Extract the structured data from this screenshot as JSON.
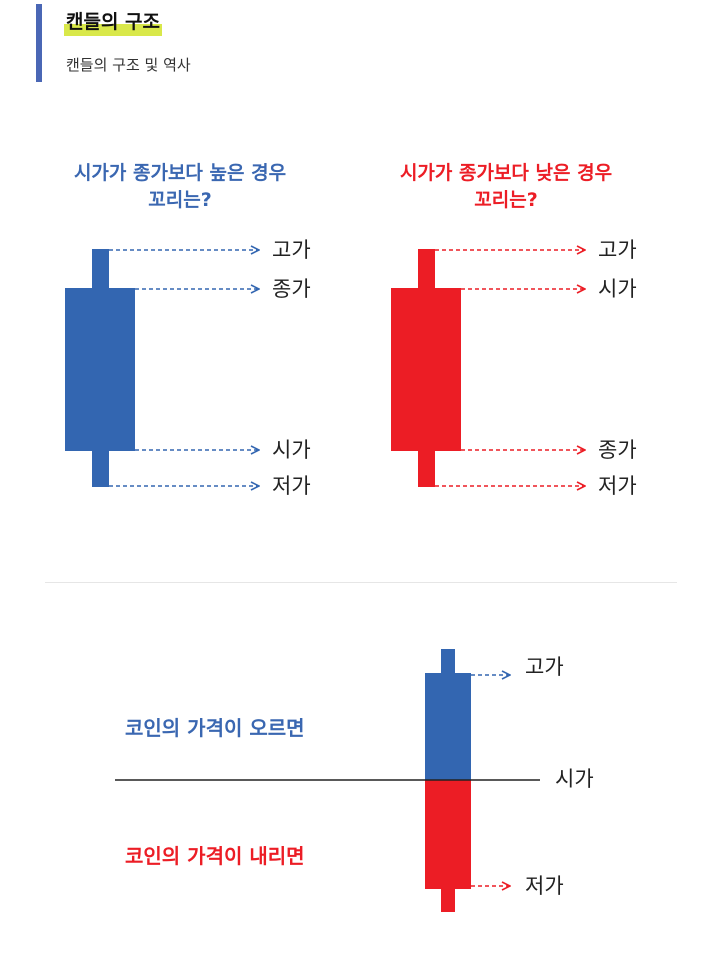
{
  "header": {
    "title": "캔들의 구조",
    "subtitle": "캔들의 구조 및 역사"
  },
  "left_candle": {
    "heading_line1": "시가가 종가보다 높은 경우",
    "heading_line2": "꼬리는?",
    "color": "#3366b1",
    "labels": [
      "고가",
      "종가",
      "시가",
      "저가"
    ]
  },
  "right_candle": {
    "heading_line1": "시가가 종가보다 낮은 경우",
    "heading_line2": "꼬리는?",
    "color": "#ec1d25",
    "labels": [
      "고가",
      "시가",
      "종가",
      "저가"
    ]
  },
  "bottom": {
    "rise_text": "코인의 가격이 오르면",
    "fall_text": "코인의 가격이 내리면",
    "labels": [
      "고가",
      "시가",
      "저가"
    ],
    "rise_color": "#3366b1",
    "fall_color": "#ec1d25"
  }
}
